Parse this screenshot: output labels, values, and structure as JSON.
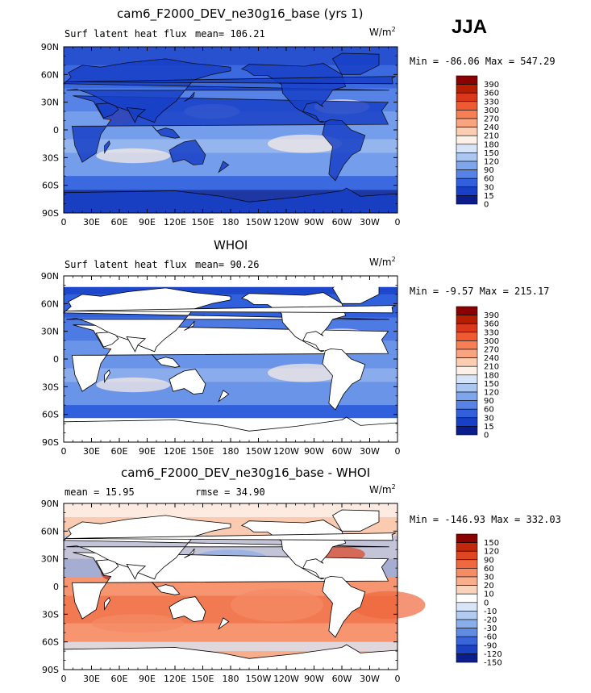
{
  "season": "JJA",
  "lon_ticks": [
    "0",
    "30E",
    "60E",
    "90E",
    "120E",
    "150E",
    "180",
    "150W",
    "120W",
    "90W",
    "60W",
    "30W",
    "0"
  ],
  "lat_ticks": [
    "90N",
    "60N",
    "30N",
    "0",
    "30S",
    "60S",
    "90S"
  ],
  "palette_fill": [
    "#f2f2f2",
    "#f5d6c8",
    "#f3e9c7"
  ],
  "panels": [
    {
      "title": "cam6_F2000_DEV_ne30g16_base (yrs 1)",
      "left_label": "Surf latent heat flux",
      "center_label": "mean= 106.21",
      "units": "W/m",
      "units_sup": "2",
      "minmax": "Min = -86.06 Max = 547.29",
      "colorbar_labels": [
        "390",
        "360",
        "330",
        "300",
        "270",
        "240",
        "210",
        "180",
        "150",
        "120",
        "90",
        "60",
        "30",
        "15",
        "0"
      ],
      "colorbar_colors": [
        "#8b0000",
        "#b51f00",
        "#d9381a",
        "#ef5a32",
        "#f77f55",
        "#f8a481",
        "#fbcdb2",
        "#fdf0e6",
        "#d6e3f8",
        "#aac6f1",
        "#7ea6ec",
        "#5783e6",
        "#3260dc",
        "#1840c7",
        "#0a1d8c"
      ],
      "colorbar_type": "sequential",
      "field": "model"
    },
    {
      "title": "WHOI",
      "left_label": "Surf latent heat flux",
      "center_label": "mean= 90.26",
      "units": "W/m",
      "units_sup": "2",
      "minmax": "Min = -9.57 Max = 215.17",
      "colorbar_labels": [
        "390",
        "360",
        "330",
        "300",
        "270",
        "240",
        "210",
        "180",
        "150",
        "120",
        "90",
        "60",
        "30",
        "15",
        "0"
      ],
      "colorbar_colors": [
        "#8b0000",
        "#b51f00",
        "#d9381a",
        "#ef5a32",
        "#f77f55",
        "#f8a481",
        "#fbcdb2",
        "#fdf0e6",
        "#d6e3f8",
        "#aac6f1",
        "#7ea6ec",
        "#5783e6",
        "#3260dc",
        "#1840c7",
        "#0a1d8c"
      ],
      "colorbar_type": "sequential",
      "field": "obs"
    },
    {
      "title": "cam6_F2000_DEV_ne30g16_base - WHOI",
      "left_label": "mean = 15.95",
      "center_label": "rmse = 34.90",
      "units": "W/m",
      "units_sup": "2",
      "minmax": "Min = -146.93 Max = 332.03",
      "colorbar_labels": [
        "150",
        "120",
        "90",
        "60",
        "30",
        "20",
        "10",
        "0",
        "-10",
        "-20",
        "-30",
        "-60",
        "-90",
        "-120",
        "-150"
      ],
      "colorbar_colors": [
        "#8b0000",
        "#c0270b",
        "#de4522",
        "#f0683f",
        "#f58c65",
        "#f8ae8d",
        "#fbd3bd",
        "#ffffff",
        "#d8e4f7",
        "#b3cbf1",
        "#8aaeea",
        "#5f8be3",
        "#3865d8",
        "#1b42c2",
        "#0b1e8c"
      ],
      "colorbar_type": "diverging",
      "field": "diff"
    }
  ]
}
